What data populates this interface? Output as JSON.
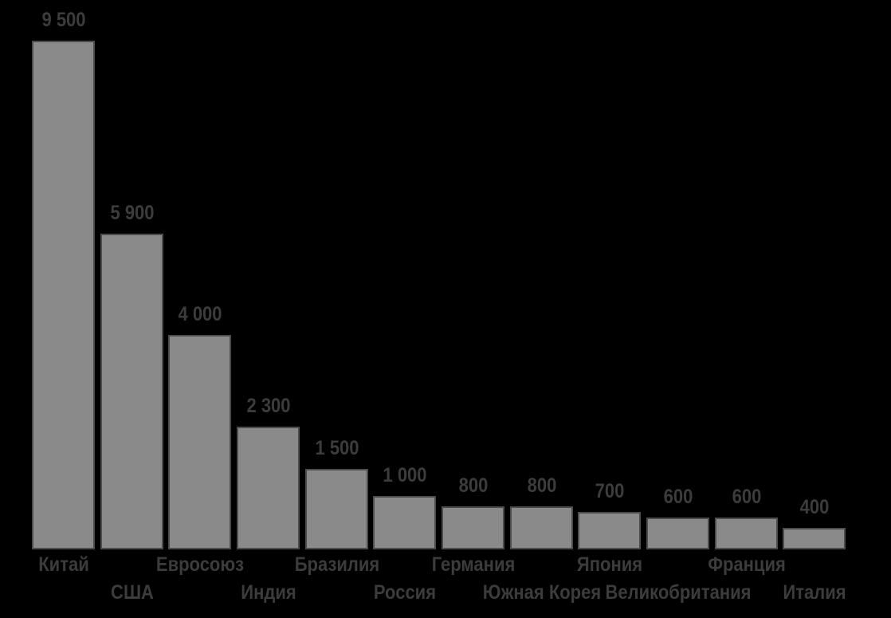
{
  "chart_data": {
    "type": "bar",
    "title": "",
    "categories": [
      "Китай",
      "США",
      "Евросоюз",
      "Индия",
      "Бразилия",
      "Россия",
      "Германия",
      "Южная Корея",
      "Япония",
      "Великобритания",
      "Франция",
      "Италия"
    ],
    "values": [
      9500,
      5900,
      4000,
      2300,
      1500,
      1000,
      800,
      800,
      700,
      600,
      600,
      400
    ],
    "value_labels": [
      "9 500",
      "5 900",
      "4 000",
      "2 300",
      "1 500",
      "1 000",
      "800",
      "800",
      "700",
      "600",
      "600",
      "400"
    ],
    "ylim": [
      0,
      9500
    ],
    "grid": false,
    "legend": null,
    "axes_visible": false,
    "value_label_position": "above-bars",
    "category_label_layout": "alternating-two-rows",
    "colors": {
      "background": "#000000",
      "bar_fill": "#8A8A8A",
      "bar_border": "#4D4D4D",
      "label_text": "#3C3C3C"
    }
  }
}
